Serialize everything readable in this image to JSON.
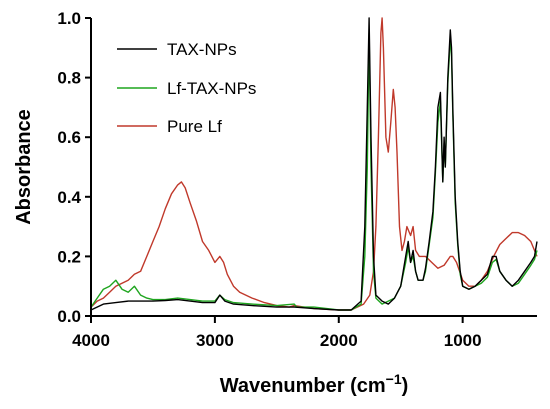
{
  "chart_data": {
    "type": "line",
    "xlabel": "Wavenumber (cm",
    "xlabel_sup": "−1",
    "xlabel_close": ")",
    "ylabel": "Absorbance",
    "xlim": [
      4000,
      400
    ],
    "ylim": [
      0.0,
      1.0
    ],
    "x_reversed": true,
    "xticks": [
      4000,
      3000,
      2000,
      1000
    ],
    "xtick_labels": [
      "4000",
      "3000",
      "2000",
      "1000"
    ],
    "yticks": [
      0.0,
      0.2,
      0.4,
      0.6,
      0.8,
      1.0
    ],
    "ytick_labels": [
      "0.0",
      "0.2",
      "0.4",
      "0.6",
      "0.8",
      "1.0"
    ],
    "grid": false,
    "legend_position": "top-left",
    "series": [
      {
        "name": "TAX-NPs",
        "color": "#000000",
        "x": [
          4000,
          3900,
          3800,
          3700,
          3600,
          3500,
          3400,
          3300,
          3200,
          3100,
          3000,
          2960,
          2920,
          2850,
          2700,
          2500,
          2360,
          2200,
          2000,
          1900,
          1820,
          1790,
          1770,
          1755,
          1740,
          1720,
          1700,
          1650,
          1600,
          1550,
          1500,
          1460,
          1440,
          1420,
          1400,
          1380,
          1360,
          1320,
          1300,
          1270,
          1240,
          1220,
          1200,
          1180,
          1160,
          1150,
          1140,
          1120,
          1100,
          1090,
          1080,
          1060,
          1040,
          1020,
          1000,
          950,
          900,
          850,
          800,
          760,
          730,
          700,
          650,
          600,
          550,
          500,
          450,
          420,
          400
        ],
        "y": [
          0.02,
          0.04,
          0.045,
          0.05,
          0.05,
          0.05,
          0.052,
          0.055,
          0.05,
          0.045,
          0.045,
          0.07,
          0.05,
          0.04,
          0.035,
          0.03,
          0.03,
          0.025,
          0.02,
          0.02,
          0.05,
          0.3,
          0.7,
          1.0,
          0.6,
          0.2,
          0.07,
          0.05,
          0.04,
          0.06,
          0.1,
          0.2,
          0.25,
          0.18,
          0.22,
          0.15,
          0.12,
          0.12,
          0.16,
          0.25,
          0.35,
          0.5,
          0.7,
          0.75,
          0.45,
          0.6,
          0.5,
          0.8,
          0.96,
          0.9,
          0.7,
          0.4,
          0.25,
          0.15,
          0.1,
          0.09,
          0.1,
          0.12,
          0.14,
          0.2,
          0.2,
          0.15,
          0.12,
          0.1,
          0.12,
          0.15,
          0.18,
          0.2,
          0.25
        ]
      },
      {
        "name": "Lf-TAX-NPs",
        "color": "#1fa51f",
        "x": [
          4000,
          3950,
          3900,
          3850,
          3800,
          3750,
          3700,
          3650,
          3600,
          3550,
          3500,
          3400,
          3300,
          3200,
          3100,
          3000,
          2960,
          2920,
          2850,
          2700,
          2500,
          2360,
          2340,
          2200,
          2000,
          1900,
          1820,
          1790,
          1770,
          1755,
          1740,
          1720,
          1700,
          1650,
          1600,
          1550,
          1500,
          1460,
          1440,
          1420,
          1400,
          1380,
          1360,
          1320,
          1300,
          1270,
          1240,
          1220,
          1200,
          1180,
          1160,
          1150,
          1140,
          1120,
          1100,
          1090,
          1080,
          1060,
          1040,
          1020,
          1000,
          950,
          900,
          850,
          800,
          760,
          730,
          700,
          650,
          600,
          550,
          500,
          450,
          420,
          400
        ],
        "y": [
          0.03,
          0.06,
          0.09,
          0.1,
          0.12,
          0.09,
          0.08,
          0.1,
          0.07,
          0.06,
          0.055,
          0.055,
          0.06,
          0.055,
          0.05,
          0.05,
          0.07,
          0.055,
          0.045,
          0.04,
          0.035,
          0.04,
          0.03,
          0.03,
          0.02,
          0.02,
          0.04,
          0.2,
          0.5,
          0.95,
          0.5,
          0.15,
          0.06,
          0.04,
          0.05,
          0.06,
          0.1,
          0.18,
          0.23,
          0.18,
          0.2,
          0.15,
          0.12,
          0.12,
          0.15,
          0.24,
          0.33,
          0.48,
          0.65,
          0.72,
          0.45,
          0.58,
          0.5,
          0.78,
          0.93,
          0.88,
          0.68,
          0.38,
          0.24,
          0.14,
          0.1,
          0.09,
          0.1,
          0.11,
          0.13,
          0.18,
          0.19,
          0.15,
          0.12,
          0.1,
          0.11,
          0.14,
          0.17,
          0.19,
          0.22
        ]
      },
      {
        "name": "Pure Lf",
        "color": "#c0392b",
        "x": [
          4000,
          3950,
          3900,
          3850,
          3800,
          3750,
          3700,
          3650,
          3600,
          3550,
          3500,
          3450,
          3400,
          3350,
          3300,
          3270,
          3240,
          3200,
          3150,
          3100,
          3050,
          3000,
          2960,
          2930,
          2900,
          2850,
          2800,
          2700,
          2600,
          2500,
          2400,
          2360,
          2200,
          2000,
          1900,
          1800,
          1750,
          1720,
          1700,
          1680,
          1660,
          1650,
          1640,
          1620,
          1600,
          1580,
          1560,
          1545,
          1530,
          1510,
          1490,
          1470,
          1450,
          1420,
          1400,
          1380,
          1350,
          1300,
          1250,
          1200,
          1150,
          1100,
          1080,
          1050,
          1000,
          950,
          900,
          850,
          800,
          750,
          700,
          650,
          600,
          550,
          500,
          450,
          420,
          400
        ],
        "y": [
          0.03,
          0.05,
          0.06,
          0.08,
          0.1,
          0.11,
          0.12,
          0.14,
          0.15,
          0.2,
          0.25,
          0.3,
          0.36,
          0.41,
          0.44,
          0.45,
          0.43,
          0.38,
          0.32,
          0.25,
          0.22,
          0.18,
          0.2,
          0.18,
          0.14,
          0.1,
          0.08,
          0.06,
          0.045,
          0.035,
          0.03,
          0.035,
          0.025,
          0.02,
          0.02,
          0.04,
          0.07,
          0.15,
          0.3,
          0.6,
          0.95,
          1.0,
          0.9,
          0.6,
          0.55,
          0.65,
          0.76,
          0.7,
          0.55,
          0.3,
          0.22,
          0.25,
          0.3,
          0.27,
          0.3,
          0.22,
          0.2,
          0.2,
          0.18,
          0.16,
          0.17,
          0.2,
          0.2,
          0.18,
          0.12,
          0.1,
          0.1,
          0.12,
          0.15,
          0.2,
          0.24,
          0.26,
          0.28,
          0.28,
          0.27,
          0.25,
          0.22,
          0.2
        ]
      }
    ]
  }
}
